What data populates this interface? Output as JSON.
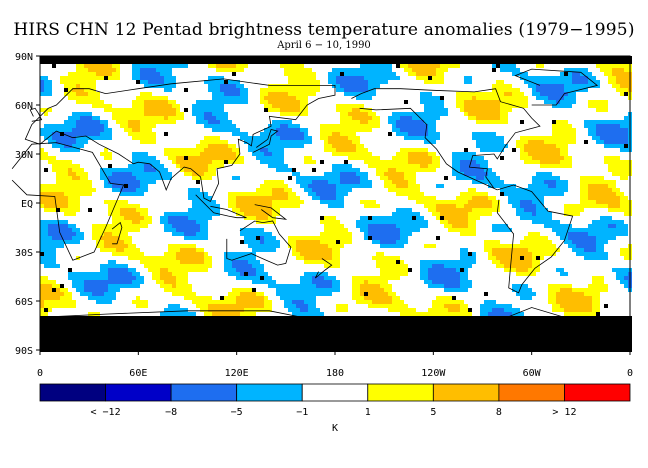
{
  "chart_data": {
    "type": "heatmap",
    "title": "HIRS CHN 12 Pentad brightness temperature anomalies (1979−1995)",
    "subtitle": "April 6 − 10, 1990",
    "y_ticks": [
      "90N",
      "60N",
      "30N",
      "EQ",
      "30S",
      "60S",
      "90S"
    ],
    "x_ticks": [
      "0",
      "60E",
      "120E",
      "180",
      "120W",
      "60W",
      "0"
    ],
    "colorbar": {
      "colors": [
        "#000080",
        "#0000c8",
        "#1e6ef0",
        "#00b4ff",
        "#ffffff",
        "#ffff00",
        "#ffbe00",
        "#ff7800",
        "#ff0000"
      ],
      "tick_labels": [
        "< −12",
        "−8",
        "−5",
        "−1",
        "1",
        "5",
        "8",
        "> 12"
      ],
      "unit": "K"
    },
    "missing_color": "#000000",
    "land_outline_color": "#000000"
  }
}
